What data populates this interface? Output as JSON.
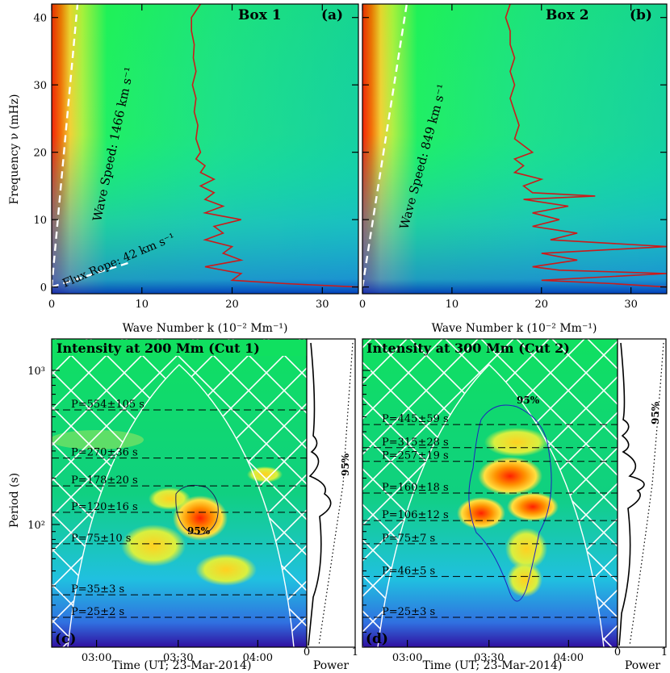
{
  "chart_data": [
    {
      "id": "a",
      "type": "heatmap",
      "panel_label": "(a)",
      "title": "Box 1",
      "xlabel": "Wave Number k (10⁻² Mm⁻¹)",
      "ylabel": "Frequency ν (mHz)",
      "xlim": [
        0,
        34
      ],
      "ylim": [
        -1,
        42
      ],
      "xticks": [
        0,
        10,
        20,
        30
      ],
      "yticks": [
        0,
        10,
        20,
        30,
        40
      ],
      "annotations": [
        {
          "text": "Wave Speed: 1466 km s⁻¹",
          "slope_mhz_per_k": 14.66
        },
        {
          "text": "Flux Rope: 42 km s⁻¹",
          "slope_mhz_per_k": 0.42
        }
      ],
      "power_profile": {
        "nu": [
          0,
          0.5,
          1,
          2,
          3,
          4,
          5,
          6,
          7,
          8,
          9,
          10,
          11,
          12,
          13,
          14,
          15,
          16,
          17,
          18,
          19,
          20,
          22,
          24,
          26,
          28,
          30,
          32,
          34,
          36,
          38,
          40,
          42
        ],
        "k": [
          34,
          26,
          20,
          21,
          17,
          21,
          19,
          20,
          17,
          19,
          18,
          21,
          17,
          19,
          17,
          18,
          16.5,
          18,
          16.5,
          17,
          16,
          16.5,
          16,
          16.2,
          15.8,
          16,
          15.6,
          16,
          15.7,
          15.8,
          15.5,
          15.5,
          16.5
        ]
      }
    },
    {
      "id": "b",
      "type": "heatmap",
      "panel_label": "(b)",
      "title": "Box 2",
      "xlabel": "Wave Number k (10⁻² Mm⁻¹)",
      "ylabel": "",
      "xlim": [
        0,
        34
      ],
      "ylim": [
        -1,
        42
      ],
      "xticks": [
        0,
        10,
        20,
        30
      ],
      "yticks": [
        0,
        10,
        20,
        30,
        40
      ],
      "annotations": [
        {
          "text": "Wave Speed: 849 km s⁻¹",
          "slope_mhz_per_k": 8.49
        }
      ],
      "power_profile": {
        "nu": [
          0,
          0.5,
          1,
          2,
          2.5,
          3,
          4,
          5,
          6,
          7,
          8,
          9,
          10,
          11,
          12,
          13,
          13.5,
          14,
          15,
          16,
          17,
          18,
          19,
          20,
          22,
          24,
          26,
          28,
          30,
          32,
          34,
          36,
          38,
          40,
          42
        ],
        "k": [
          34,
          28,
          20,
          34,
          22,
          19,
          24,
          20,
          34,
          21,
          24,
          19,
          22,
          19,
          23,
          18,
          26,
          19,
          18,
          20,
          17,
          18,
          17,
          19,
          17,
          17.5,
          17,
          16.5,
          17,
          16.5,
          17,
          16.5,
          16.5,
          16,
          16.5
        ]
      }
    },
    {
      "id": "c",
      "type": "heatmap",
      "panel_label": "(c)",
      "title": "Intensity at 200 Mm (Cut 1)",
      "xlabel": "Time (UT; 23-Mar-2014)",
      "ylabel": "Period (s)",
      "yscale": "log",
      "ylim": [
        16,
        1600
      ],
      "xticks_labels": [
        "03:00",
        "03:30",
        "04:00"
      ],
      "ytick_labels": [
        "10²",
        "10³"
      ],
      "contour_label": "95%",
      "periods": [
        {
          "text": "P=554±105 s",
          "value": 554
        },
        {
          "text": "P=270±36 s",
          "value": 270
        },
        {
          "text": "P=178±20 s",
          "value": 178
        },
        {
          "text": "P=120±16 s",
          "value": 120
        },
        {
          "text": "P=75±10 s",
          "value": 75
        },
        {
          "text": "P=35±3 s",
          "value": 35
        },
        {
          "text": "P=25±2 s",
          "value": 25
        }
      ],
      "side_panel": {
        "xlabel": "Power",
        "xlim": [
          0,
          1
        ],
        "xticks": [
          "0",
          "1"
        ],
        "significance_label": "95%"
      }
    },
    {
      "id": "d",
      "type": "heatmap",
      "panel_label": "(d)",
      "title": "Intensity at 300 Mm (Cut 2)",
      "xlabel": "Time (UT; 23-Mar-2014)",
      "ylabel": "",
      "yscale": "log",
      "ylim": [
        16,
        1600
      ],
      "xticks_labels": [
        "03:00",
        "03:30",
        "04:00"
      ],
      "contour_label": "95%",
      "periods": [
        {
          "text": "P=445±59 s",
          "value": 445
        },
        {
          "text": "P=315±28 s",
          "value": 315
        },
        {
          "text": "P=257±19 s",
          "value": 257
        },
        {
          "text": "P=160±18 s",
          "value": 160
        },
        {
          "text": "P=106±12 s",
          "value": 106
        },
        {
          "text": "P=75±7 s",
          "value": 75
        },
        {
          "text": "P=46±5 s",
          "value": 46
        },
        {
          "text": "P=25±3 s",
          "value": 25
        }
      ],
      "side_panel": {
        "xlabel": "Power",
        "xlim": [
          0,
          1
        ],
        "xticks": [
          "0",
          "1"
        ],
        "significance_label": "95%"
      }
    }
  ]
}
